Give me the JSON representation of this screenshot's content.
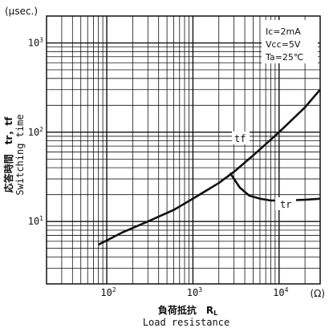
{
  "chart_data": {
    "type": "line",
    "xscale": "log",
    "yscale": "log",
    "xlim": [
      20,
      30000
    ],
    "ylim": [
      2,
      2000
    ],
    "grid": true,
    "x_ticks": [
      {
        "base": "10",
        "exp": "2",
        "value": 100
      },
      {
        "base": "10",
        "exp": "3",
        "value": 1000
      },
      {
        "base": "10",
        "exp": "4",
        "value": 10000
      }
    ],
    "y_ticks": [
      {
        "base": "10",
        "exp": "1",
        "value": 10
      },
      {
        "base": "10",
        "exp": "2",
        "value": 100
      },
      {
        "base": "10",
        "exp": "3",
        "value": 1000
      }
    ],
    "y_unit": "(μsec.)",
    "x_unit": "(Ω)",
    "xlabel_jp": "負荷抵抗　R",
    "xlabel_sub": "L",
    "xlabel_en": "Load resistance",
    "ylabel_jp": "応答時間　tr，tf",
    "ylabel_en": "Switching time",
    "conditions": [
      "Ic=2mA",
      "Vcc=5V",
      "Ta=25℃"
    ],
    "series": [
      {
        "name": "tf",
        "x": [
          80,
          150,
          300,
          600,
          1000,
          2000,
          3000,
          5000,
          10000,
          20000,
          30000
        ],
        "y": [
          5.5,
          7.5,
          10,
          13.5,
          18,
          27,
          36,
          55,
          100,
          190,
          300
        ]
      },
      {
        "name": "tr",
        "x": [
          2700,
          3500,
          4500,
          6000,
          8000,
          12000,
          20000,
          30000
        ],
        "y": [
          35,
          24,
          19.5,
          18,
          17.2,
          17.2,
          17.5,
          18
        ]
      }
    ]
  }
}
